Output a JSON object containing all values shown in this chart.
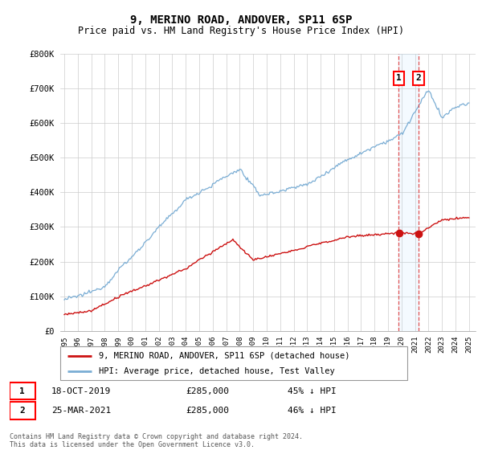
{
  "title": "9, MERINO ROAD, ANDOVER, SP11 6SP",
  "subtitle": "Price paid vs. HM Land Registry's House Price Index (HPI)",
  "ylim": [
    0,
    800000
  ],
  "yticks": [
    0,
    100000,
    200000,
    300000,
    400000,
    500000,
    600000,
    700000,
    800000
  ],
  "ytick_labels": [
    "£0",
    "£100K",
    "£200K",
    "£300K",
    "£400K",
    "£500K",
    "£600K",
    "£700K",
    "£800K"
  ],
  "hpi_color": "#7aadd4",
  "price_color": "#cc1111",
  "marker1_year": 2019.8,
  "marker1_price": 285000,
  "marker2_year": 2021.25,
  "marker2_price": 285000,
  "legend_red_label": "9, MERINO ROAD, ANDOVER, SP11 6SP (detached house)",
  "legend_blue_label": "HPI: Average price, detached house, Test Valley",
  "annotation1_date": "18-OCT-2019",
  "annotation1_price": "£285,000",
  "annotation1_hpi": "45% ↓ HPI",
  "annotation2_date": "25-MAR-2021",
  "annotation2_price": "£285,000",
  "annotation2_hpi": "46% ↓ HPI",
  "footer": "Contains HM Land Registry data © Crown copyright and database right 2024.\nThis data is licensed under the Open Government Licence v3.0.",
  "background_color": "#ffffff",
  "grid_color": "#cccccc"
}
